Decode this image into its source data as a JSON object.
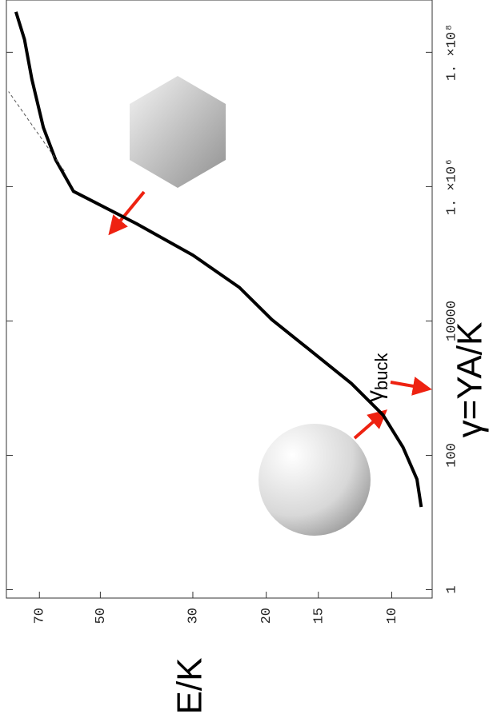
{
  "chart_data": {
    "type": "line",
    "xlabel": "γ=YA/K",
    "ylabel": "E/K",
    "annotations": [
      {
        "text": "γ",
        "subscript": "buck",
        "x": 2000
      }
    ],
    "xscale": "log",
    "yscale": "log",
    "xlim": [
      0.75,
      600000000
    ],
    "ylim": [
      8,
      84
    ],
    "xticks": [
      1,
      100,
      10000,
      {
        "value": 1000000,
        "label": "1. ×10⁶"
      },
      {
        "value": 100000000,
        "label": "1. ×10⁸"
      }
    ],
    "yticks": [
      10,
      15,
      20,
      30,
      50,
      70
    ],
    "series": [
      {
        "color": "#000000",
        "style": "solid",
        "x": [
          17,
          44,
          132,
          400,
          1175,
          3550,
          10500,
          31600,
          95500,
          282000,
          851000,
          2510000,
          7590000,
          39800000,
          155000000,
          400000000
        ],
        "values": [
          8.5,
          8.7,
          9.4,
          10.5,
          12.5,
          15.6,
          19.4,
          23.2,
          30,
          41,
          58,
          64,
          68.5,
          73,
          76,
          79.7
        ]
      },
      {
        "color": "#555555",
        "style": "dashed",
        "x": [
          1700000,
          26000000
        ],
        "values": [
          61,
          83
        ]
      }
    ]
  }
}
